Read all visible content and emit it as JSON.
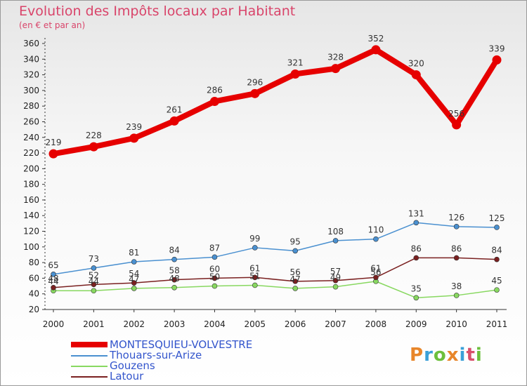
{
  "title": "Evolution des Impôts locaux par Habitant",
  "subtitle": "(en € et par an)",
  "logo": {
    "text": "Proxiti",
    "colors": [
      "#e8862a",
      "#3aa0d8",
      "#6cbf3c",
      "#e8862a",
      "#3aa0d8",
      "#d94f6b",
      "#6cbf3c"
    ]
  },
  "chart_data": {
    "type": "line",
    "title": "Evolution des Impôts locaux par Habitant",
    "subtitle": "(en € et par an)",
    "x": [
      "2000",
      "2001",
      "2002",
      "2003",
      "2004",
      "2005",
      "2006",
      "2007",
      "2008",
      "2009",
      "2010",
      "2011"
    ],
    "ylim": [
      20,
      360
    ],
    "yticks": [
      20,
      40,
      60,
      80,
      100,
      120,
      140,
      160,
      180,
      200,
      220,
      240,
      260,
      280,
      300,
      320,
      340,
      360
    ],
    "grid": false,
    "legend_position": "bottom-left",
    "series": [
      {
        "name": "MONTESQUIEU-VOLVESTRE",
        "color": "#e60000",
        "legend_color": "#3355cc",
        "values": [
          219,
          228,
          239,
          261,
          286,
          296,
          321,
          328,
          352,
          320,
          256,
          339
        ]
      },
      {
        "name": "Thouars-sur-Arize",
        "color": "#4a90d0",
        "legend_color": "#3355cc",
        "values": [
          65,
          73,
          81,
          84,
          87,
          99,
          95,
          108,
          110,
          131,
          126,
          125
        ]
      },
      {
        "name": "Gouzens",
        "color": "#88d860",
        "legend_color": "#3355cc",
        "values": [
          44,
          44,
          47,
          48,
          50,
          51,
          47,
          49,
          56,
          35,
          38,
          45
        ]
      },
      {
        "name": "Latour",
        "color": "#7a2020",
        "legend_color": "#3355cc",
        "values": [
          48,
          52,
          54,
          58,
          60,
          61,
          56,
          57,
          61,
          86,
          86,
          84
        ]
      }
    ]
  }
}
